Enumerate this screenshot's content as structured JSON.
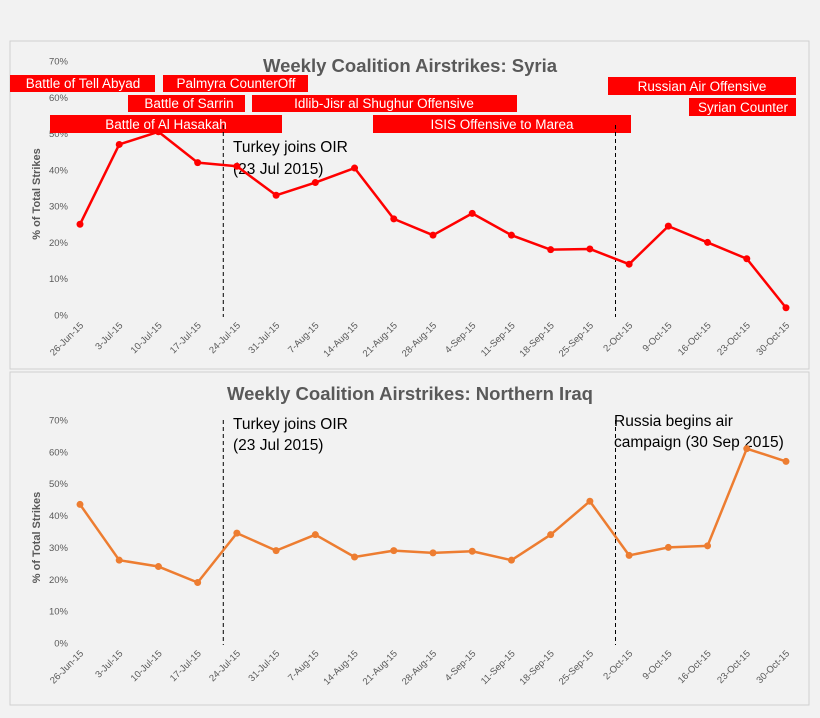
{
  "colors": {
    "syria": "#ff0000",
    "iraq": "#ed7d31",
    "event_fill": "#ff0000",
    "axis_text": "#595959",
    "title": "#595959"
  },
  "chart_data": [
    {
      "type": "line",
      "title": "Weekly Coalition Airstrikes: Syria",
      "ylabel": "% of Total Strikes",
      "ylim": [
        0,
        70
      ],
      "grid": false,
      "categories": [
        "26-Jun-15",
        "3-Jul-15",
        "10-Jul-15",
        "17-Jul-15",
        "24-Jul-15",
        "31-Jul-15",
        "7-Aug-15",
        "14-Aug-15",
        "21-Aug-15",
        "28-Aug-15",
        "4-Sep-15",
        "11-Sep-15",
        "18-Sep-15",
        "25-Sep-15",
        "2-Oct-15",
        "9-Oct-15",
        "16-Oct-15",
        "23-Oct-15",
        "30-Oct-15"
      ],
      "yticks": [
        "0%",
        "10%",
        "20%",
        "30%",
        "40%",
        "50%",
        "60%",
        "70%"
      ],
      "series": [
        {
          "values": [
            25,
            47,
            50.5,
            42,
            41,
            33,
            36.5,
            40.5,
            26.5,
            22,
            28,
            22,
            18,
            18.2,
            14,
            24.5,
            20,
            15.5,
            2
          ]
        }
      ],
      "annotations": [
        {
          "text": "Turkey joins OIR",
          "text2": "(23 Jul 2015)"
        }
      ],
      "events": [
        "Battle of Tell Abyad",
        "Palmyra CounterOff",
        "Battle of Sarrin",
        "Idlib-Jisr al Shughur Offensive",
        "Battle of Al Hasakah",
        "ISIS Offensive to Marea",
        "Russian Air Offensive",
        "Syrian Counter"
      ]
    },
    {
      "type": "line",
      "title": "Weekly Coalition Airstrikes: Northern Iraq",
      "ylabel": "% of Total Strikes",
      "ylim": [
        0,
        70
      ],
      "grid": false,
      "categories": [
        "26-Jun-15",
        "3-Jul-15",
        "10-Jul-15",
        "17-Jul-15",
        "24-Jul-15",
        "31-Jul-15",
        "7-Aug-15",
        "14-Aug-15",
        "21-Aug-15",
        "28-Aug-15",
        "4-Sep-15",
        "11-Sep-15",
        "18-Sep-15",
        "25-Sep-15",
        "2-Oct-15",
        "9-Oct-15",
        "16-Oct-15",
        "23-Oct-15",
        "30-Oct-15"
      ],
      "yticks": [
        "0%",
        "10%",
        "20%",
        "30%",
        "40%",
        "50%",
        "60%",
        "70%"
      ],
      "series": [
        {
          "values": [
            43.5,
            26,
            24,
            19,
            34.5,
            29,
            34,
            27,
            29,
            28.3,
            28.8,
            26,
            34,
            44.5,
            27.5,
            30,
            30.5,
            61,
            57
          ]
        }
      ],
      "annotations": [
        {
          "text": "Turkey joins OIR",
          "text2": "(23 Jul 2015)"
        },
        {
          "text": "Russia begins air",
          "text2": "campaign (30 Sep 2015)"
        }
      ]
    }
  ]
}
